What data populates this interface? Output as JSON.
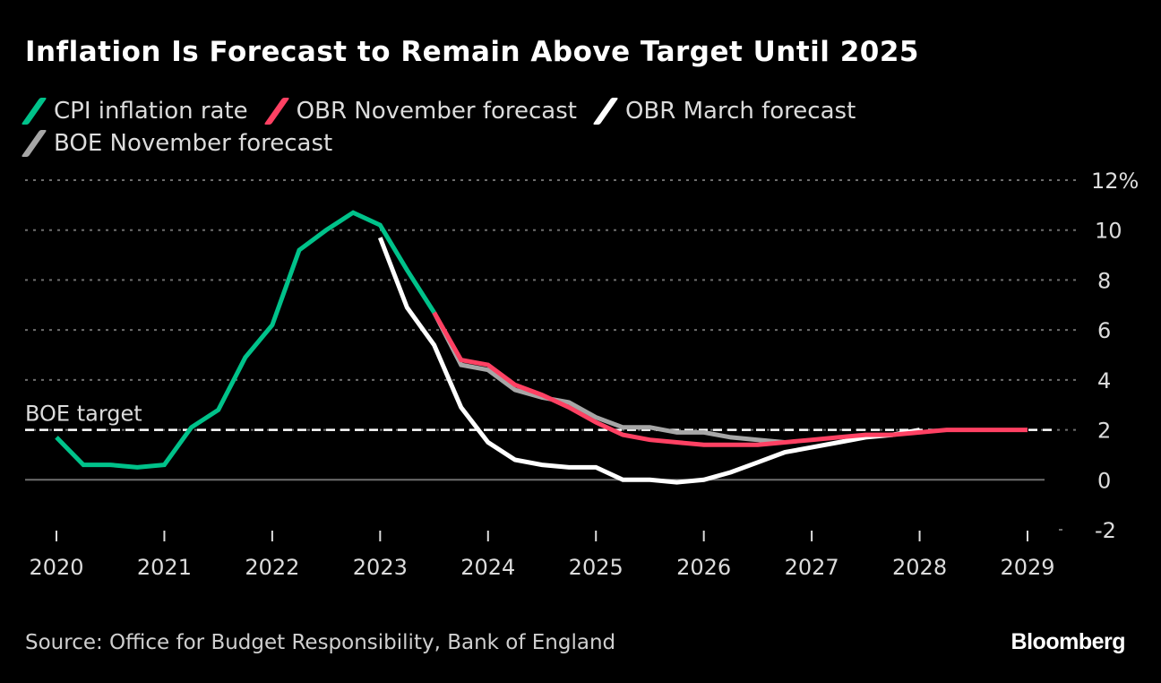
{
  "chart_data": {
    "type": "line",
    "title": "Inflation Is Forecast to Remain Above Target Until 2025",
    "xlabel": "",
    "ylabel": "",
    "y_unit": "%",
    "ylim": [
      -2,
      12
    ],
    "xlim": [
      2019.7,
      2029.35
    ],
    "yticks": [
      12,
      10,
      8,
      6,
      4,
      2,
      0,
      -2
    ],
    "ytick_labels": [
      "12%",
      "10",
      "8",
      "6",
      "4",
      "2",
      "0",
      "-2"
    ],
    "xticks": [
      2020,
      2021,
      2022,
      2023,
      2024,
      2025,
      2026,
      2027,
      2028,
      2029
    ],
    "xtick_labels": [
      "2020",
      "2021",
      "2022",
      "2023",
      "2024",
      "2025",
      "2026",
      "2027",
      "2028",
      "2029"
    ],
    "grid": true,
    "legend_position": "top-left",
    "reference_line": {
      "label": "BOE target",
      "value": 2
    },
    "series": [
      {
        "name": "CPI inflation rate",
        "color": "#00c28a",
        "x": [
          2020.0,
          2020.25,
          2020.5,
          2020.75,
          2021.0,
          2021.25,
          2021.5,
          2021.75,
          2022.0,
          2022.25,
          2022.5,
          2022.75,
          2023.0,
          2023.25,
          2023.5
        ],
        "y": [
          1.7,
          0.6,
          0.6,
          0.5,
          0.6,
          2.1,
          2.8,
          4.9,
          6.2,
          9.2,
          10.0,
          10.7,
          10.2,
          8.4,
          6.7
        ]
      },
      {
        "name": "OBR November forecast",
        "color": "#ff4163",
        "x": [
          2023.5,
          2023.75,
          2024.0,
          2024.25,
          2024.5,
          2024.75,
          2025.0,
          2025.25,
          2025.5,
          2025.75,
          2026.0,
          2026.25,
          2026.5,
          2026.75,
          2027.0,
          2027.25,
          2027.5,
          2027.75,
          2028.0,
          2028.25,
          2028.5,
          2028.75,
          2029.0
        ],
        "y": [
          6.7,
          4.8,
          4.6,
          3.8,
          3.4,
          2.9,
          2.3,
          1.8,
          1.6,
          1.5,
          1.4,
          1.4,
          1.4,
          1.5,
          1.6,
          1.7,
          1.8,
          1.8,
          1.9,
          2.0,
          2.0,
          2.0,
          2.0
        ]
      },
      {
        "name": "OBR March forecast",
        "color": "#ffffff",
        "x": [
          2023.0,
          2023.25,
          2023.5,
          2023.75,
          2024.0,
          2024.25,
          2024.5,
          2024.75,
          2025.0,
          2025.25,
          2025.5,
          2025.75,
          2026.0,
          2026.25,
          2026.5,
          2026.75,
          2027.0,
          2027.25,
          2027.5,
          2027.75,
          2028.0
        ],
        "y": [
          9.7,
          6.9,
          5.4,
          2.9,
          1.5,
          0.8,
          0.6,
          0.5,
          0.5,
          0.0,
          0.0,
          -0.1,
          0.0,
          0.3,
          0.7,
          1.1,
          1.3,
          1.5,
          1.7,
          1.8,
          2.0
        ]
      },
      {
        "name": "BOE November forecast",
        "color": "#a6a6a6",
        "x": [
          2023.5,
          2023.75,
          2024.0,
          2024.25,
          2024.5,
          2024.75,
          2025.0,
          2025.25,
          2025.5,
          2025.75,
          2026.0,
          2026.25,
          2026.5,
          2026.75
        ],
        "y": [
          6.7,
          4.6,
          4.4,
          3.6,
          3.3,
          3.1,
          2.5,
          2.1,
          2.1,
          1.9,
          1.9,
          1.7,
          1.6,
          1.5
        ]
      }
    ]
  },
  "footer": {
    "source": "Source: Office for Budget Responsibility, Bank of England",
    "brand": "Bloomberg"
  }
}
